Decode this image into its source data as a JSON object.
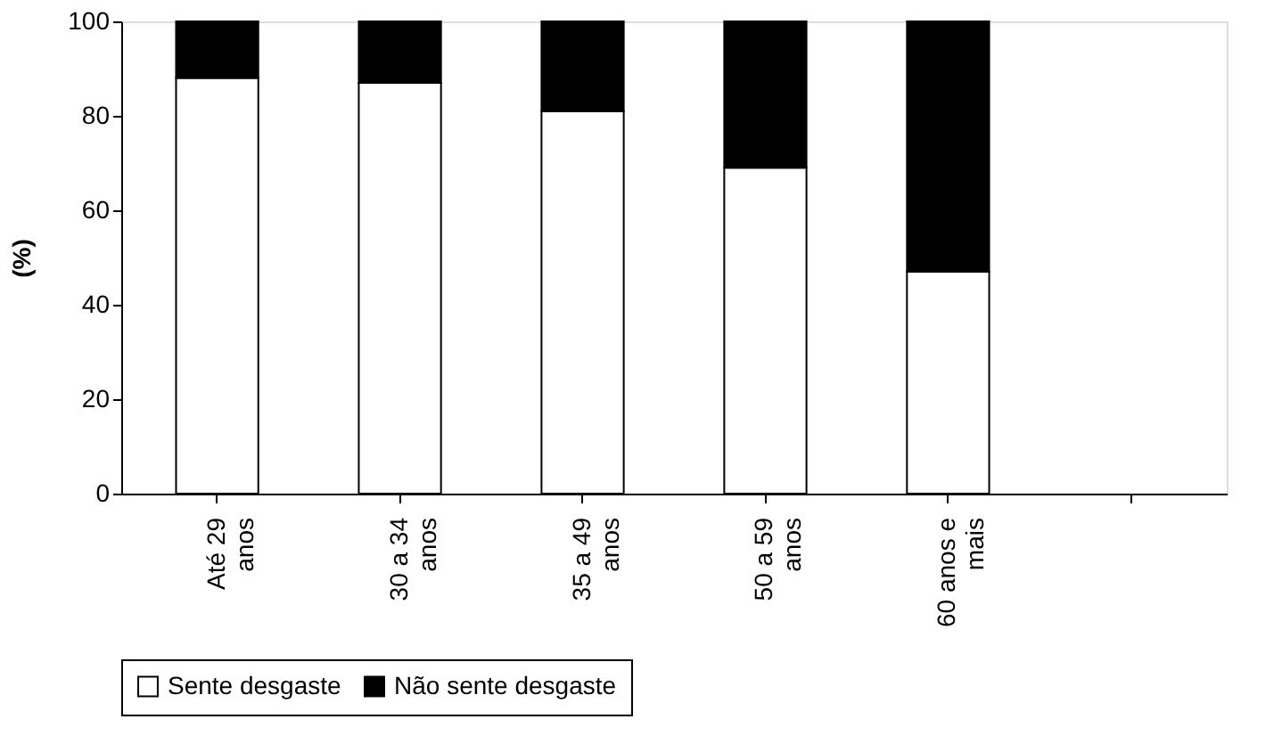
{
  "chart_data": {
    "type": "bar",
    "stacked": true,
    "ylabel": "(%)",
    "categories": [
      "Até 29 anos",
      "30 a 34 anos",
      "35 a 49 anos",
      "50 a 59 anos",
      "60 anos e mais",
      null
    ],
    "series": [
      {
        "name": "Sente desgaste",
        "color": "#ffffff",
        "values": [
          88,
          87,
          81,
          69,
          47,
          null
        ]
      },
      {
        "name": "Não sente desgaste",
        "color": "#000000",
        "values": [
          12,
          13,
          19,
          31,
          53,
          null
        ]
      }
    ],
    "ylim": [
      0,
      100
    ],
    "yticks": [
      0,
      20,
      40,
      60,
      80,
      100
    ],
    "grid": false,
    "legend": "bottom"
  }
}
